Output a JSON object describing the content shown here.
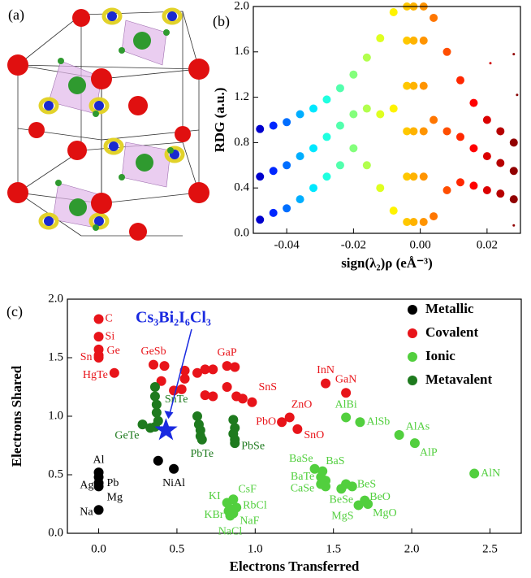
{
  "structure": {
    "label": "(a)"
  },
  "chart_data": [
    {
      "type": "scatter",
      "panel_label": "(b)",
      "xlabel": "sign(λ₂)ρ (eÅ⁻³)",
      "ylabel": "RDG (a.u.)",
      "colormap": "jet",
      "xlim": [
        -0.05,
        0.03
      ],
      "xticks": [
        -0.04,
        -0.02,
        {
          "value": 0,
          "label": "0.00"
        },
        0.02
      ],
      "ylim": [
        0,
        2.0
      ],
      "yticks": [
        {
          "value": 0,
          "label": "0.0"
        },
        0.4,
        0.8,
        1.2,
        1.6,
        {
          "value": 2.0,
          "label": "2.0"
        }
      ],
      "x": [
        -0.048,
        -0.044,
        -0.04,
        -0.036,
        -0.032,
        -0.028,
        -0.024,
        -0.02,
        -0.016,
        -0.012,
        -0.008,
        -0.048,
        -0.044,
        -0.04,
        -0.036,
        -0.032,
        -0.028,
        -0.024,
        -0.02,
        -0.016,
        -0.012,
        -0.008,
        -0.048,
        -0.044,
        -0.04,
        -0.036,
        -0.032,
        -0.028,
        -0.024,
        -0.02,
        -0.016,
        -0.012,
        -0.008,
        -0.004,
        -0.004,
        -0.004,
        -0.004,
        -0.004,
        -0.004,
        -0.002,
        -0.002,
        -0.002,
        -0.002,
        -0.002,
        -0.002,
        0.001,
        0.001,
        0.001,
        0.001,
        0.001,
        0.001,
        0.004,
        0.008,
        0.012,
        0.016,
        0.02,
        0.024,
        0.028,
        0.004,
        0.008,
        0.012,
        0.016,
        0.02,
        0.024,
        0.028,
        0.004,
        0.008,
        0.012,
        0.016,
        0.02,
        0.024,
        0.028,
        0.021,
        0.028,
        0.029,
        0.028
      ],
      "y": [
        0.92,
        0.95,
        0.98,
        1.05,
        1.1,
        1.18,
        1.28,
        1.4,
        1.55,
        1.72,
        1.95,
        0.12,
        0.18,
        0.22,
        0.3,
        0.4,
        0.5,
        0.6,
        0.75,
        0.6,
        0.4,
        0.2,
        0.5,
        0.55,
        0.6,
        0.68,
        0.75,
        0.85,
        0.95,
        1.05,
        1.1,
        1.05,
        1.1,
        0.1,
        0.5,
        0.9,
        1.3,
        1.7,
        2.0,
        0.1,
        0.5,
        0.9,
        1.3,
        1.7,
        2.0,
        0.1,
        0.5,
        0.9,
        1.3,
        1.7,
        2.0,
        1.9,
        1.6,
        1.35,
        1.15,
        1.0,
        0.9,
        0.8,
        0.15,
        0.38,
        0.45,
        0.42,
        0.38,
        0.35,
        0.3,
        1.0,
        0.9,
        0.85,
        0.75,
        0.68,
        0.62,
        0.55,
        1.5,
        1.58,
        1.22,
        0.07
      ]
    },
    {
      "type": "scatter",
      "panel_label": "(c)",
      "xlabel": "Electrons Transferred",
      "ylabel": "Electrons Shared",
      "xlim": [
        -0.2,
        2.7
      ],
      "xticks": [
        {
          "value": 0,
          "label": "0.0"
        },
        0.5,
        {
          "value": 1,
          "label": "1.0"
        },
        1.5,
        {
          "value": 2,
          "label": "2.0"
        },
        2.5
      ],
      "ylim": [
        0,
        2.0
      ],
      "yticks": [
        {
          "value": 0,
          "label": "0.0"
        },
        0.5,
        {
          "value": 1,
          "label": "1.0"
        },
        1.5,
        {
          "value": 2,
          "label": "2.0"
        }
      ],
      "legend": "upper right",
      "annotation": {
        "text": "Cs₃Bi₂I₆Cl₃",
        "x": 0.43,
        "y": 0.88,
        "color": "#1a2ae0"
      },
      "series": [
        {
          "name": "Metallic",
          "color": "#000000",
          "x": [
            0,
            0,
            0,
            0,
            0,
            0.38,
            0.48
          ],
          "y": [
            0.52,
            0.48,
            0.43,
            0.4,
            0.2,
            0.62,
            0.55
          ],
          "labels": [
            "Al",
            "Pb",
            "Ag",
            "Mg",
            "Na",
            null,
            "NiAl"
          ]
        },
        {
          "name": "Covalent",
          "color": "#e8141a",
          "x": [
            0,
            0,
            0,
            0,
            0,
            0.1,
            0.35,
            0.42,
            0.4,
            0.48,
            0.55,
            0.55,
            0.53,
            0.63,
            0.68,
            0.73,
            0.68,
            0.73,
            0.82,
            0.87,
            0.82,
            0.88,
            0.92,
            0.98,
            1.45,
            1.58,
            1.22,
            1.17,
            1.27
          ],
          "y": [
            1.83,
            1.68,
            1.57,
            1.52,
            1.5,
            1.37,
            1.44,
            1.43,
            1.3,
            1.22,
            1.39,
            1.32,
            1.23,
            1.37,
            1.4,
            1.4,
            1.18,
            1.17,
            1.43,
            1.42,
            1.25,
            1.17,
            1.15,
            1.12,
            1.28,
            1.2,
            0.99,
            0.95,
            0.89
          ],
          "labels": [
            "C",
            "Si",
            "Ge",
            null,
            "Sn",
            "HgTe",
            "GeSb",
            null,
            null,
            null,
            null,
            null,
            null,
            null,
            null,
            null,
            null,
            null,
            "GaP",
            null,
            null,
            null,
            null,
            "SnS",
            "InN",
            "GaN",
            "ZnO",
            "PbO",
            "SnO"
          ]
        },
        {
          "name": "Ionic",
          "color": "#52cf3e",
          "x": [
            1.58,
            1.67,
            1.92,
            2.02,
            2.4,
            1.38,
            1.43,
            1.42,
            1.45,
            1.42,
            1.45,
            1.58,
            1.62,
            1.55,
            1.7,
            1.66,
            1.72,
            0.82,
            0.86,
            0.84,
            0.88,
            0.86,
            0.84,
            0.83
          ],
          "y": [
            0.99,
            0.95,
            0.84,
            0.77,
            0.51,
            0.55,
            0.53,
            0.48,
            0.45,
            0.42,
            0.4,
            0.42,
            0.4,
            0.38,
            0.28,
            0.24,
            0.25,
            0.26,
            0.29,
            0.21,
            0.22,
            0.17,
            0.15,
            0.19
          ],
          "labels": [
            "AlBi",
            "AlSb",
            "AlAs",
            "AlP",
            "AlN",
            "BaSe",
            "BaS",
            "BaTe",
            null,
            "CaSe",
            null,
            null,
            "BeS",
            "BeSe",
            "BeO",
            "MgS",
            "MgO",
            "KI",
            "CsF",
            "KBr",
            "RbCl",
            "NaF",
            "NaCl",
            null
          ]
        },
        {
          "name": "Metavalent",
          "color": "#1e7a1e",
          "x": [
            0.36,
            0.36,
            0.37,
            0.37,
            0.38,
            0.36,
            0.28,
            0.33,
            0.63,
            0.64,
            0.65,
            0.65,
            0.66,
            0.86,
            0.87,
            0.86,
            0.87,
            0.87
          ],
          "y": [
            1.25,
            1.17,
            1.1,
            1.03,
            0.96,
            0.91,
            0.93,
            0.9,
            1.0,
            0.93,
            0.88,
            0.83,
            0.8,
            0.97,
            0.9,
            0.85,
            0.8,
            0.77
          ],
          "labels": [
            null,
            null,
            "SnTe",
            null,
            null,
            null,
            "GeTe",
            null,
            null,
            null,
            null,
            null,
            "PbTe",
            null,
            null,
            null,
            null,
            "PbSe"
          ]
        }
      ]
    }
  ]
}
